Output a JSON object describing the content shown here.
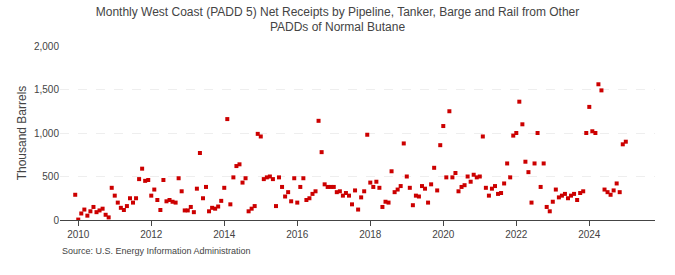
{
  "chart_data": {
    "type": "scatter",
    "title": "Monthly West Coast (PADD 5) Net Receipts by Pipeline, Tanker, Barge and Rail from Other\nPADDs of Normal Butane",
    "ylabel": "Thousand Barrels",
    "annotations": [
      "Source: U.S. Energy Information Administration"
    ],
    "color": "#cc0000",
    "marker": "square",
    "grid": true,
    "xlim": [
      2009.5,
      2025.8
    ],
    "xticks": [
      2010,
      2012,
      2014,
      2016,
      2018,
      2020,
      2022,
      2024
    ],
    "ylim": [
      0,
      2000
    ],
    "yticks": [
      0,
      500,
      {
        "value": 1000,
        "label": "1,000"
      },
      {
        "value": 1500,
        "label": "1,500"
      },
      {
        "value": 2000,
        "label": "2,000"
      }
    ],
    "x": [
      2009.917,
      2010.0,
      2010.083,
      2010.167,
      2010.25,
      2010.333,
      2010.417,
      2010.5,
      2010.583,
      2010.667,
      2010.75,
      2010.833,
      2010.917,
      2011.0,
      2011.083,
      2011.167,
      2011.25,
      2011.333,
      2011.417,
      2011.5,
      2011.583,
      2011.667,
      2011.75,
      2011.833,
      2011.917,
      2012.0,
      2012.083,
      2012.167,
      2012.25,
      2012.333,
      2012.417,
      2012.5,
      2012.583,
      2012.667,
      2012.75,
      2012.833,
      2012.917,
      2013.0,
      2013.083,
      2013.167,
      2013.25,
      2013.333,
      2013.417,
      2013.5,
      2013.583,
      2013.667,
      2013.75,
      2013.833,
      2013.917,
      2014.0,
      2014.083,
      2014.167,
      2014.25,
      2014.333,
      2014.417,
      2014.5,
      2014.583,
      2014.667,
      2014.75,
      2014.833,
      2014.917,
      2015.0,
      2015.083,
      2015.167,
      2015.25,
      2015.333,
      2015.417,
      2015.5,
      2015.583,
      2015.667,
      2015.75,
      2015.833,
      2015.917,
      2016.0,
      2016.083,
      2016.167,
      2016.25,
      2016.333,
      2016.417,
      2016.5,
      2016.583,
      2016.667,
      2016.75,
      2016.833,
      2016.917,
      2017.0,
      2017.083,
      2017.167,
      2017.25,
      2017.333,
      2017.417,
      2017.5,
      2017.583,
      2017.667,
      2017.75,
      2017.833,
      2017.917,
      2018.0,
      2018.083,
      2018.167,
      2018.25,
      2018.333,
      2018.417,
      2018.5,
      2018.583,
      2018.667,
      2018.75,
      2018.833,
      2018.917,
      2019.0,
      2019.083,
      2019.167,
      2019.25,
      2019.333,
      2019.417,
      2019.5,
      2019.583,
      2019.667,
      2019.75,
      2019.833,
      2019.917,
      2020.0,
      2020.083,
      2020.167,
      2020.25,
      2020.333,
      2020.417,
      2020.5,
      2020.583,
      2020.667,
      2020.75,
      2020.833,
      2020.917,
      2021.0,
      2021.083,
      2021.167,
      2021.25,
      2021.333,
      2021.417,
      2021.5,
      2021.583,
      2021.667,
      2021.75,
      2021.833,
      2021.917,
      2022.0,
      2022.083,
      2022.167,
      2022.25,
      2022.333,
      2022.417,
      2022.5,
      2022.583,
      2022.667,
      2022.75,
      2022.833,
      2022.917,
      2023.0,
      2023.083,
      2023.167,
      2023.25,
      2023.333,
      2023.417,
      2023.5,
      2023.583,
      2023.667,
      2023.75,
      2023.833,
      2023.917,
      2024.0,
      2024.083,
      2024.167,
      2024.25,
      2024.333,
      2024.417,
      2024.5,
      2024.583,
      2024.667,
      2024.75,
      2024.833,
      2024.917,
      2025.0
    ],
    "values": [
      290,
      5,
      75,
      120,
      50,
      100,
      150,
      90,
      110,
      130,
      60,
      30,
      370,
      280,
      200,
      140,
      115,
      160,
      250,
      200,
      250,
      470,
      590,
      450,
      460,
      280,
      350,
      230,
      115,
      460,
      215,
      230,
      210,
      200,
      480,
      330,
      110,
      110,
      150,
      90,
      360,
      770,
      250,
      380,
      100,
      140,
      130,
      155,
      220,
      370,
      1160,
      180,
      490,
      620,
      640,
      430,
      480,
      100,
      130,
      160,
      990,
      960,
      470,
      490,
      500,
      470,
      160,
      490,
      380,
      270,
      320,
      215,
      480,
      200,
      380,
      480,
      230,
      250,
      300,
      330,
      1140,
      780,
      410,
      380,
      380,
      380,
      320,
      330,
      280,
      310,
      280,
      180,
      340,
      120,
      260,
      330,
      980,
      430,
      380,
      440,
      370,
      150,
      210,
      200,
      560,
      320,
      350,
      390,
      880,
      500,
      370,
      170,
      280,
      270,
      390,
      360,
      200,
      410,
      600,
      340,
      860,
      1080,
      490,
      1250,
      490,
      540,
      330,
      380,
      400,
      500,
      440,
      520,
      490,
      500,
      960,
      370,
      280,
      360,
      390,
      300,
      310,
      420,
      650,
      490,
      970,
      1000,
      1360,
      1100,
      670,
      550,
      200,
      650,
      1000,
      380,
      650,
      150,
      100,
      210,
      350,
      260,
      280,
      300,
      250,
      280,
      300,
      230,
      310,
      330,
      1000,
      1300,
      1020,
      1000,
      1560,
      1490,
      350,
      320,
      290,
      340,
      420,
      320,
      870,
      900
    ]
  }
}
